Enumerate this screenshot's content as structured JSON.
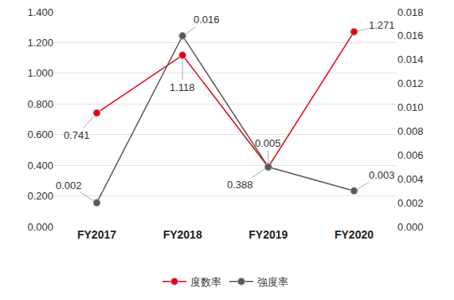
{
  "chart_data": {
    "type": "line",
    "categories": [
      "FY2017",
      "FY2018",
      "FY2019",
      "FY2020"
    ],
    "series": [
      {
        "name": "度数率",
        "color": "#e60012",
        "marker": "circle",
        "values": [
          0.741,
          1.118,
          0.388,
          1.271
        ]
      },
      {
        "name": "強度率",
        "color": "#595959",
        "marker": "circle",
        "axis": "y2",
        "values": [
          0.002,
          0.016,
          0.005,
          0.003
        ]
      }
    ],
    "ylim": [
      0,
      1.4
    ],
    "yticks": [
      {
        "value": 0,
        "label": "0.000"
      },
      {
        "value": 0.2,
        "label": "0.200"
      },
      {
        "value": 0.4,
        "label": "0.400"
      },
      {
        "value": 0.6,
        "label": "0.600"
      },
      {
        "value": 0.8,
        "label": "0.800"
      },
      {
        "value": 1.0,
        "label": "1.000"
      },
      {
        "value": 1.2,
        "label": "1.200"
      },
      {
        "value": 1.4,
        "label": "1.400"
      }
    ],
    "y2lim": [
      0,
      0.018
    ],
    "y2ticks": [
      {
        "value": 0,
        "label": "0.000"
      },
      {
        "value": 0.002,
        "label": "0.002"
      },
      {
        "value": 0.004,
        "label": "0.004"
      },
      {
        "value": 0.006,
        "label": "0.006"
      },
      {
        "value": 0.008,
        "label": "0.008"
      },
      {
        "value": 0.01,
        "label": "0.010"
      },
      {
        "value": 0.012,
        "label": "0.012"
      },
      {
        "value": 0.014,
        "label": "0.014"
      },
      {
        "value": 0.016,
        "label": "0.016"
      },
      {
        "value": 0.018,
        "label": "0.018"
      }
    ],
    "grid": true,
    "legend": "bottom",
    "data_labels": true
  }
}
